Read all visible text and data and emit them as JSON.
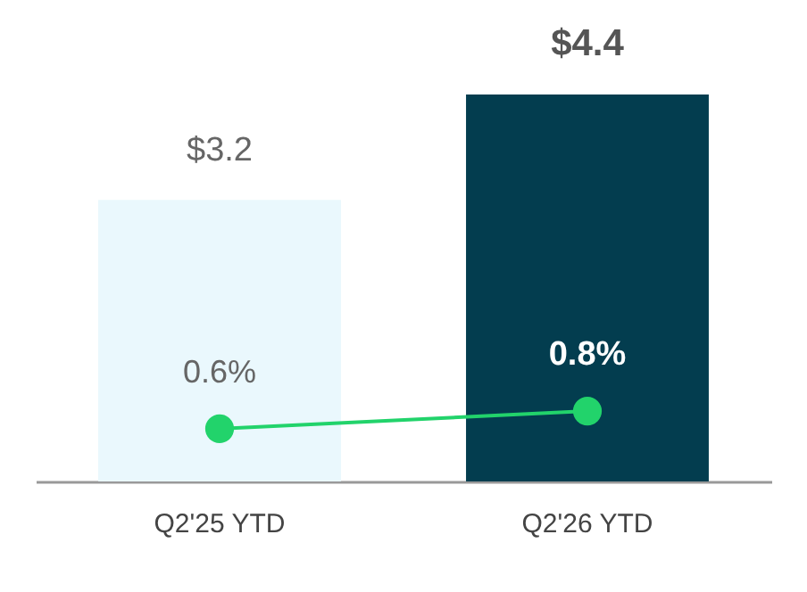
{
  "chart_data": {
    "type": "bar",
    "categories": [
      "Q2'25 YTD",
      "Q2'26 YTD"
    ],
    "tick_labels": "x",
    "series": [
      {
        "colors": [
          "#eaf8fd",
          "#033d4f"
        ],
        "values": [
          3.2,
          4.4
        ],
        "value_labels": [
          "$3.2",
          "$4.4"
        ]
      },
      {
        "type": "line",
        "color": "#22d36b",
        "marker": "circle",
        "values": [
          0.6,
          0.8
        ],
        "value_labels": [
          "0.6%",
          "0.8%"
        ]
      }
    ]
  }
}
